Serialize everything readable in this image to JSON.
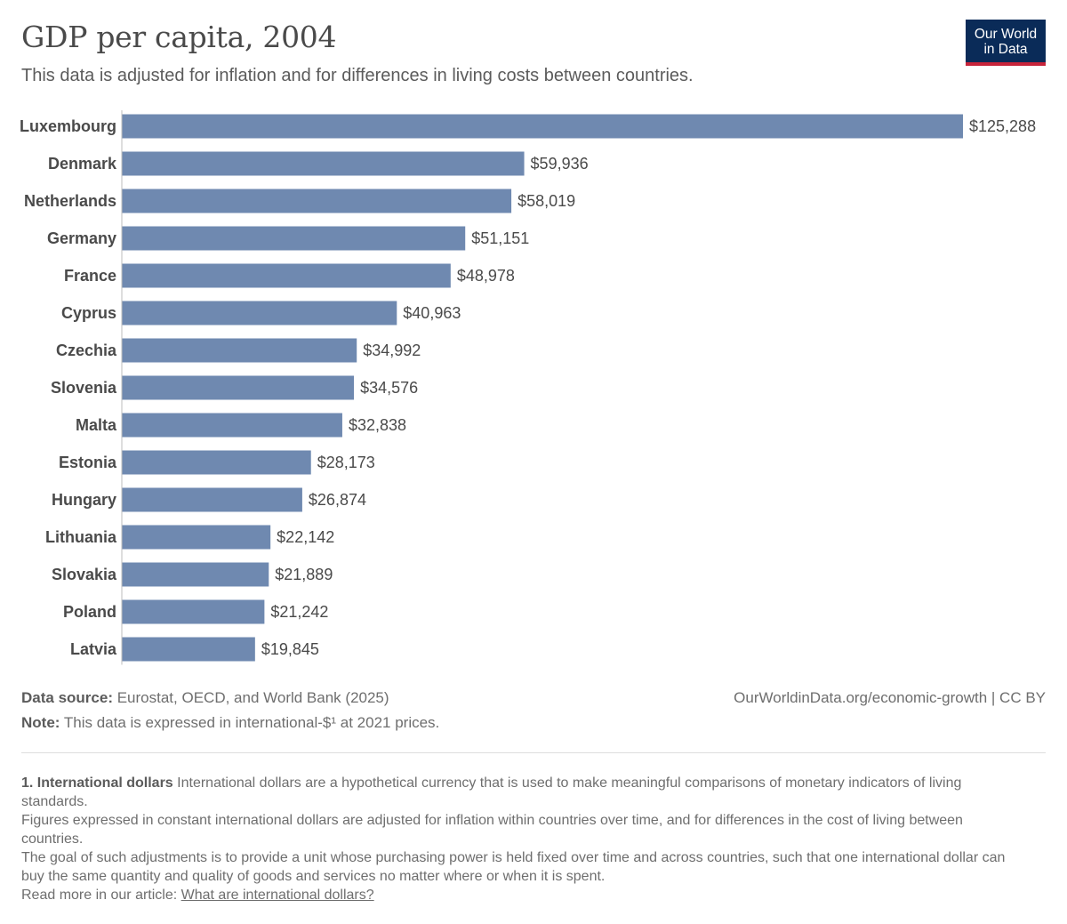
{
  "title": "GDP per capita, 2004",
  "subtitle": "This data is adjusted for inflation and for differences in living costs between countries.",
  "logo": {
    "line1": "Our World",
    "line2": "in Data",
    "bg_color": "#0a2b58",
    "accent_color": "#c7243a"
  },
  "chart_data": {
    "type": "bar",
    "orientation": "horizontal",
    "title": "GDP per capita, 2004",
    "xlabel": "",
    "ylabel": "",
    "bar_color": "#6f89b0",
    "categories": [
      "Luxembourg",
      "Denmark",
      "Netherlands",
      "Germany",
      "France",
      "Cyprus",
      "Czechia",
      "Slovenia",
      "Malta",
      "Estonia",
      "Hungary",
      "Lithuania",
      "Slovakia",
      "Poland",
      "Latvia"
    ],
    "values": [
      125288,
      59936,
      58019,
      51151,
      48978,
      40963,
      34992,
      34576,
      32838,
      28173,
      26874,
      22142,
      21889,
      21242,
      19845
    ],
    "value_labels": [
      "$125,288",
      "$59,936",
      "$58,019",
      "$51,151",
      "$48,978",
      "$40,963",
      "$34,992",
      "$34,576",
      "$32,838",
      "$28,173",
      "$26,874",
      "$22,142",
      "$21,889",
      "$21,242",
      "$19,845"
    ],
    "xlim": [
      0,
      125288
    ]
  },
  "footer": {
    "source_label": "Data source:",
    "source_text": "Eurostat, OECD, and World Bank (2025)",
    "url": "OurWorldinData.org/economic-growth | CC BY",
    "note_label": "Note:",
    "note_text": "This data is expressed in international-$¹ at 2021 prices."
  },
  "footnote": {
    "heading": "1. International dollars",
    "p1": "International dollars are a hypothetical currency that is used to make meaningful comparisons of monetary indicators of living standards.",
    "p2": "Figures expressed in constant international dollars are adjusted for inflation within countries over time, and for differences in the cost of living between countries.",
    "p3": "The goal of such adjustments is to provide a unit whose purchasing power is held fixed over time and across countries, such that one international dollar can buy the same quantity and quality of goods and services no matter where or when it is spent.",
    "read_more": "Read more in our article:",
    "link_text": "What are international dollars?"
  }
}
